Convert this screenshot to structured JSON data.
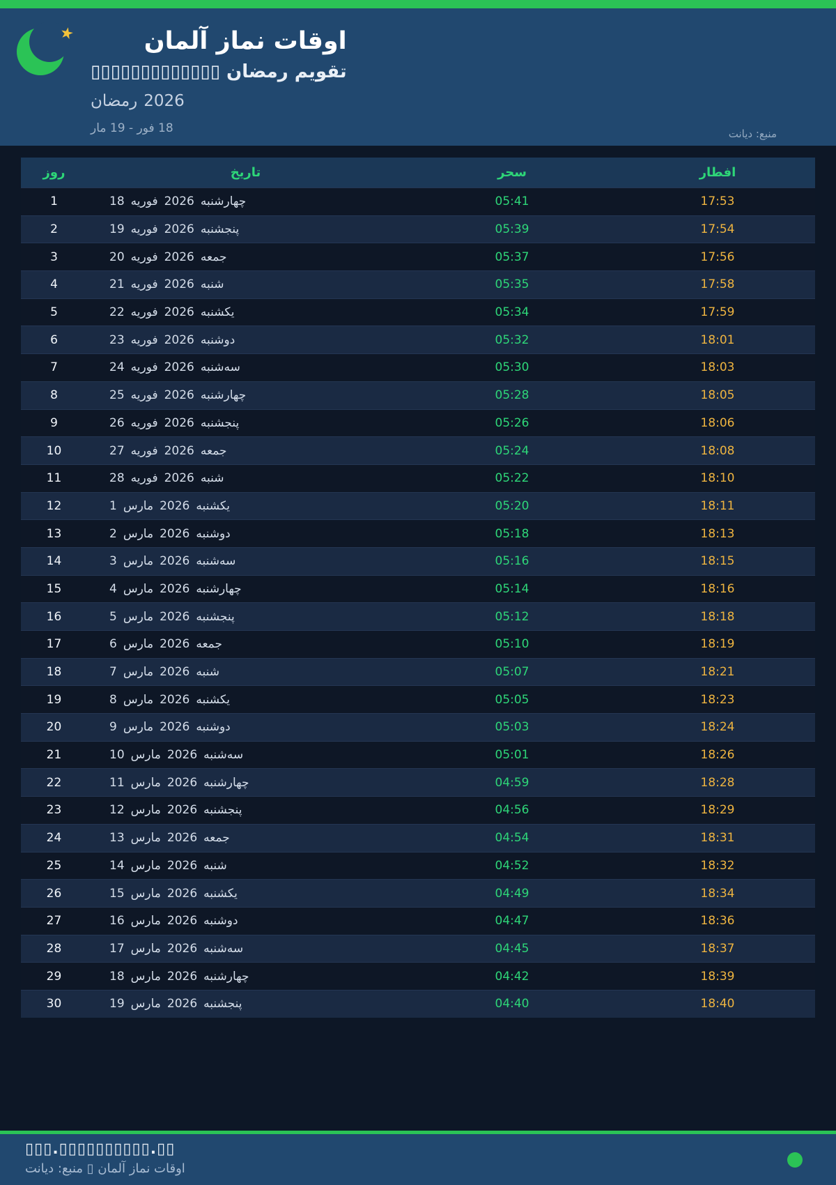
{
  "header": {
    "title": "اوقات نماز آلمان",
    "subtitle": "تقویم رمضان ▯▯▯▯▯▯▯▯▯▯▯▯▯",
    "season_label": "رمضان",
    "season_year": "2026",
    "date_range": "18 فور - 19 مار",
    "source": "منبع: دیانت",
    "star_glyph": "★"
  },
  "table": {
    "columns": {
      "day": "روز",
      "date": "تاریخ",
      "sahar": "سحر",
      "iftar": "افطار"
    },
    "rows": [
      {
        "day": "1",
        "d": "18",
        "m": "فوریه",
        "y": "2026",
        "w": "چهارشنبه",
        "sahar": "05:41",
        "iftar": "17:53"
      },
      {
        "day": "2",
        "d": "19",
        "m": "فوریه",
        "y": "2026",
        "w": "پنجشنبه",
        "sahar": "05:39",
        "iftar": "17:54"
      },
      {
        "day": "3",
        "d": "20",
        "m": "فوریه",
        "y": "2026",
        "w": "جمعه",
        "sahar": "05:37",
        "iftar": "17:56"
      },
      {
        "day": "4",
        "d": "21",
        "m": "فوریه",
        "y": "2026",
        "w": "شنبه",
        "sahar": "05:35",
        "iftar": "17:58"
      },
      {
        "day": "5",
        "d": "22",
        "m": "فوریه",
        "y": "2026",
        "w": "یکشنبه",
        "sahar": "05:34",
        "iftar": "17:59"
      },
      {
        "day": "6",
        "d": "23",
        "m": "فوریه",
        "y": "2026",
        "w": "دوشنبه",
        "sahar": "05:32",
        "iftar": "18:01"
      },
      {
        "day": "7",
        "d": "24",
        "m": "فوریه",
        "y": "2026",
        "w": "سه‌شنبه",
        "sahar": "05:30",
        "iftar": "18:03"
      },
      {
        "day": "8",
        "d": "25",
        "m": "فوریه",
        "y": "2026",
        "w": "چهارشنبه",
        "sahar": "05:28",
        "iftar": "18:05"
      },
      {
        "day": "9",
        "d": "26",
        "m": "فوریه",
        "y": "2026",
        "w": "پنجشنبه",
        "sahar": "05:26",
        "iftar": "18:06"
      },
      {
        "day": "10",
        "d": "27",
        "m": "فوریه",
        "y": "2026",
        "w": "جمعه",
        "sahar": "05:24",
        "iftar": "18:08"
      },
      {
        "day": "11",
        "d": "28",
        "m": "فوریه",
        "y": "2026",
        "w": "شنبه",
        "sahar": "05:22",
        "iftar": "18:10"
      },
      {
        "day": "12",
        "d": "1",
        "m": "مارس",
        "y": "2026",
        "w": "یکشنبه",
        "sahar": "05:20",
        "iftar": "18:11"
      },
      {
        "day": "13",
        "d": "2",
        "m": "مارس",
        "y": "2026",
        "w": "دوشنبه",
        "sahar": "05:18",
        "iftar": "18:13"
      },
      {
        "day": "14",
        "d": "3",
        "m": "مارس",
        "y": "2026",
        "w": "سه‌شنبه",
        "sahar": "05:16",
        "iftar": "18:15"
      },
      {
        "day": "15",
        "d": "4",
        "m": "مارس",
        "y": "2026",
        "w": "چهارشنبه",
        "sahar": "05:14",
        "iftar": "18:16"
      },
      {
        "day": "16",
        "d": "5",
        "m": "مارس",
        "y": "2026",
        "w": "پنجشنبه",
        "sahar": "05:12",
        "iftar": "18:18"
      },
      {
        "day": "17",
        "d": "6",
        "m": "مارس",
        "y": "2026",
        "w": "جمعه",
        "sahar": "05:10",
        "iftar": "18:19"
      },
      {
        "day": "18",
        "d": "7",
        "m": "مارس",
        "y": "2026",
        "w": "شنبه",
        "sahar": "05:07",
        "iftar": "18:21"
      },
      {
        "day": "19",
        "d": "8",
        "m": "مارس",
        "y": "2026",
        "w": "یکشنبه",
        "sahar": "05:05",
        "iftar": "18:23"
      },
      {
        "day": "20",
        "d": "9",
        "m": "مارس",
        "y": "2026",
        "w": "دوشنبه",
        "sahar": "05:03",
        "iftar": "18:24"
      },
      {
        "day": "21",
        "d": "10",
        "m": "مارس",
        "y": "2026",
        "w": "سه‌شنبه",
        "sahar": "05:01",
        "iftar": "18:26"
      },
      {
        "day": "22",
        "d": "11",
        "m": "مارس",
        "y": "2026",
        "w": "چهارشنبه",
        "sahar": "04:59",
        "iftar": "18:28"
      },
      {
        "day": "23",
        "d": "12",
        "m": "مارس",
        "y": "2026",
        "w": "پنجشنبه",
        "sahar": "04:56",
        "iftar": "18:29"
      },
      {
        "day": "24",
        "d": "13",
        "m": "مارس",
        "y": "2026",
        "w": "جمعه",
        "sahar": "04:54",
        "iftar": "18:31"
      },
      {
        "day": "25",
        "d": "14",
        "m": "مارس",
        "y": "2026",
        "w": "شنبه",
        "sahar": "04:52",
        "iftar": "18:32"
      },
      {
        "day": "26",
        "d": "15",
        "m": "مارس",
        "y": "2026",
        "w": "یکشنبه",
        "sahar": "04:49",
        "iftar": "18:34"
      },
      {
        "day": "27",
        "d": "16",
        "m": "مارس",
        "y": "2026",
        "w": "دوشنبه",
        "sahar": "04:47",
        "iftar": "18:36"
      },
      {
        "day": "28",
        "d": "17",
        "m": "مارس",
        "y": "2026",
        "w": "سه‌شنبه",
        "sahar": "04:45",
        "iftar": "18:37"
      },
      {
        "day": "29",
        "d": "18",
        "m": "مارس",
        "y": "2026",
        "w": "چهارشنبه",
        "sahar": "04:42",
        "iftar": "18:39"
      },
      {
        "day": "30",
        "d": "19",
        "m": "مارس",
        "y": "2026",
        "w": "پنجشنبه",
        "sahar": "04:40",
        "iftar": "18:40"
      }
    ]
  },
  "footer": {
    "line1": "▯▯▯.▯▯▯▯▯▯▯▯▯▯.▯▯",
    "line2": "اوقات نماز آلمان ▯ منبع: دیانت"
  },
  "colors": {
    "accent_green": "#2bc356",
    "time_green": "#2ed678",
    "iftar_amber": "#eeb440",
    "header_bg": "#21486f",
    "page_bg": "#0d1726",
    "table_header_bg": "#1b3857",
    "row_odd": "#0e1726",
    "row_even": "#1a2a43",
    "star_gold": "#f2c23b"
  }
}
